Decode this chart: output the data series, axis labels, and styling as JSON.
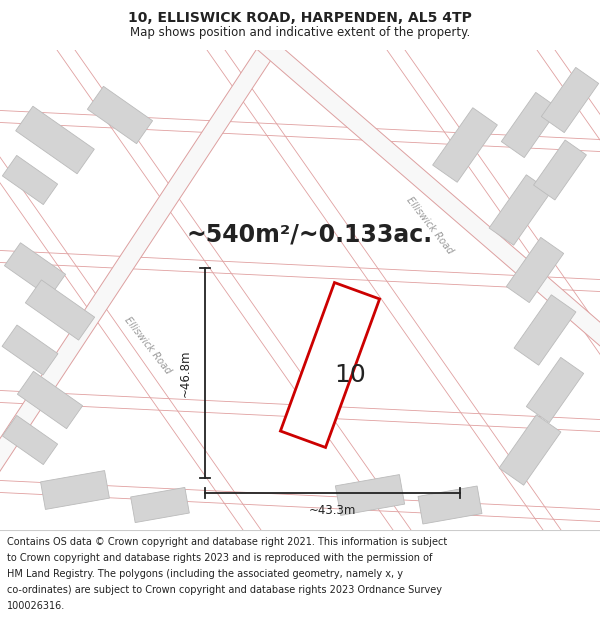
{
  "title": "10, ELLISWICK ROAD, HARPENDEN, AL5 4TP",
  "subtitle": "Map shows position and indicative extent of the property.",
  "area_text": "~540m²/~0.133ac.",
  "label_number": "10",
  "dim_width": "~43.3m",
  "dim_height": "~46.8m",
  "road_label_lower": "Elliswick Road",
  "road_label_upper": "Elliswick Road",
  "footer_lines": [
    "Contains OS data © Crown copyright and database right 2021. This information is subject",
    "to Crown copyright and database rights 2023 and is reproduced with the permission of",
    "HM Land Registry. The polygons (including the associated geometry, namely x, y",
    "co-ordinates) are subject to Crown copyright and database rights 2023 Ordnance Survey",
    "100026316."
  ],
  "map_bg_color": "#efefef",
  "plot_fill_color": "#ffffff",
  "plot_edge_color": "#cc0000",
  "road_stroke_color": "#e8a0a0",
  "building_color": "#d4d4d4",
  "building_edge_color": "#bbbbbb",
  "dim_line_color": "#222222",
  "text_color": "#222222",
  "footer_bg_color": "#ffffff",
  "title_fontsize": 10,
  "subtitle_fontsize": 8.5,
  "area_fontsize": 17,
  "label_fontsize": 18,
  "dim_fontsize": 8.5,
  "road_fontsize": 7,
  "footer_fontsize": 7
}
